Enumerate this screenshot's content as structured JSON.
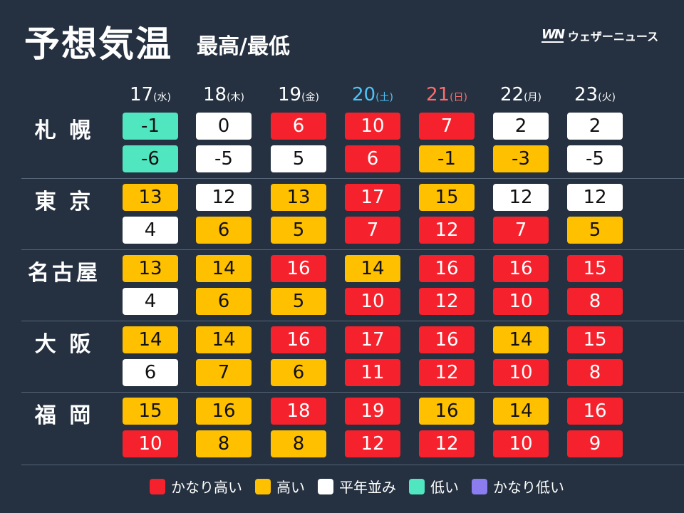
{
  "header": {
    "title": "予想気温",
    "subtitle": "最高/最低",
    "brand_logo": "WN",
    "brand_name": "ウェザーニュース"
  },
  "days": [
    {
      "date": "17",
      "weekday": "(水)",
      "type": "weekday"
    },
    {
      "date": "18",
      "weekday": "(木)",
      "type": "weekday"
    },
    {
      "date": "19",
      "weekday": "(金)",
      "type": "weekday"
    },
    {
      "date": "20",
      "weekday": "(土)",
      "type": "saturday"
    },
    {
      "date": "21",
      "weekday": "(日)",
      "type": "sunday"
    },
    {
      "date": "22",
      "weekday": "(月)",
      "type": "weekday"
    },
    {
      "date": "23",
      "weekday": "(火)",
      "type": "weekday"
    }
  ],
  "cities": [
    {
      "name": "札 幌",
      "high": [
        "-1",
        "0",
        "6",
        "10",
        "7",
        "2",
        "2"
      ],
      "high_level": [
        "g",
        "w",
        "r",
        "r",
        "r",
        "w",
        "w"
      ],
      "low": [
        "-6",
        "-5",
        "5",
        "6",
        "-1",
        "-3",
        "-5"
      ],
      "low_level": [
        "g",
        "w",
        "w",
        "r",
        "o",
        "o",
        "w"
      ]
    },
    {
      "name": "東 京",
      "high": [
        "13",
        "12",
        "13",
        "17",
        "15",
        "12",
        "12"
      ],
      "high_level": [
        "o",
        "w",
        "o",
        "r",
        "o",
        "w",
        "w"
      ],
      "low": [
        "4",
        "6",
        "5",
        "7",
        "12",
        "7",
        "5"
      ],
      "low_level": [
        "w",
        "o",
        "o",
        "r",
        "r",
        "r",
        "o"
      ]
    },
    {
      "name": "名古屋",
      "high": [
        "13",
        "14",
        "16",
        "14",
        "16",
        "16",
        "15"
      ],
      "high_level": [
        "o",
        "o",
        "r",
        "o",
        "r",
        "r",
        "r"
      ],
      "low": [
        "4",
        "6",
        "5",
        "10",
        "12",
        "10",
        "8"
      ],
      "low_level": [
        "w",
        "o",
        "o",
        "r",
        "r",
        "r",
        "r"
      ]
    },
    {
      "name": "大 阪",
      "high": [
        "14",
        "14",
        "16",
        "17",
        "16",
        "14",
        "15"
      ],
      "high_level": [
        "o",
        "o",
        "r",
        "r",
        "r",
        "o",
        "r"
      ],
      "low": [
        "6",
        "7",
        "6",
        "11",
        "12",
        "10",
        "8"
      ],
      "low_level": [
        "w",
        "o",
        "o",
        "r",
        "r",
        "r",
        "r"
      ]
    },
    {
      "name": "福 岡",
      "high": [
        "15",
        "16",
        "18",
        "19",
        "16",
        "14",
        "16"
      ],
      "high_level": [
        "o",
        "o",
        "r",
        "r",
        "o",
        "o",
        "r"
      ],
      "low": [
        "10",
        "8",
        "8",
        "12",
        "12",
        "10",
        "9"
      ],
      "low_level": [
        "r",
        "o",
        "o",
        "r",
        "r",
        "r",
        "r"
      ]
    }
  ],
  "colors": {
    "background": "#253140",
    "very_high": "#f5222d",
    "high": "#ffc000",
    "normal": "#ffffff",
    "low": "#4fe6c0",
    "very_low": "#8b7cf0",
    "saturday": "#4fc3f7",
    "sunday": "#ff6b6b"
  },
  "legend": [
    {
      "label": "かなり高い",
      "color": "#f5222d"
    },
    {
      "label": "高い",
      "color": "#ffc000"
    },
    {
      "label": "平年並み",
      "color": "#ffffff"
    },
    {
      "label": "低い",
      "color": "#4fe6c0"
    },
    {
      "label": "かなり低い",
      "color": "#8b7cf0"
    }
  ]
}
